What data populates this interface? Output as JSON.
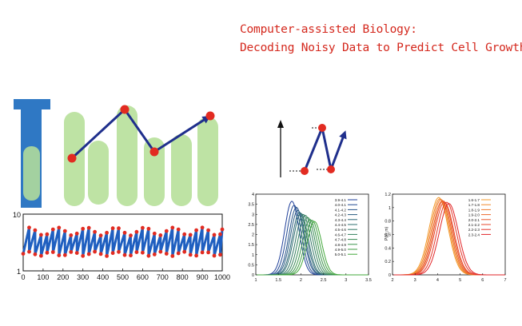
{
  "title": {
    "line1": "Computer-assisted Biology:",
    "line2": "Decoding Noisy Data to Predict Cell Growth"
  },
  "colors": {
    "title": "#d4271c",
    "mother_channel": "#2f78c4",
    "cells": "#b7e09a",
    "arrows": "#1f2f8c",
    "points": "#e22b21",
    "trace": "#1f5fc0",
    "green_series": "#43a83b",
    "blue_series": "#1f3f9a",
    "orange_series": "#f39b2e",
    "red_series": "#e2262a"
  },
  "chart_data": [
    {
      "type": "line",
      "name": "time-trace",
      "xlim": [
        0,
        1000
      ],
      "ylim": [
        1,
        10
      ],
      "yscale": "log",
      "xticks": [
        "0",
        "100",
        "200",
        "300",
        "400",
        "500",
        "600",
        "700",
        "800",
        "900",
        "1000"
      ],
      "yticks": [
        "1",
        "10"
      ],
      "period": 30,
      "low": 2.0,
      "high": 5.0
    },
    {
      "type": "line",
      "name": "distributions-left",
      "xlim": [
        1,
        3.5
      ],
      "ylim": [
        0,
        4
      ],
      "xticks": [
        "1",
        "1.5",
        "2",
        "2.5",
        "3",
        "3.5"
      ],
      "yticks": [
        "0",
        "0.5",
        "1",
        "1.5",
        "2",
        "2.5",
        "3",
        "3.5",
        "4"
      ],
      "series": [
        {
          "name": "3.9-4.1",
          "center": 1.8,
          "height": 3.65
        },
        {
          "name": "4.0-4.1",
          "center": 1.85,
          "height": 3.45
        },
        {
          "name": "4.1-4.2",
          "center": 1.9,
          "height": 3.35
        },
        {
          "name": "4.2-4.3",
          "center": 1.93,
          "height": 3.2
        },
        {
          "name": "4.3-4.4",
          "center": 1.97,
          "height": 3.1
        },
        {
          "name": "4.4-4.5",
          "center": 2.0,
          "height": 3.05
        },
        {
          "name": "4.5-4.6",
          "center": 2.05,
          "height": 3.0
        },
        {
          "name": "4.6-4.7",
          "center": 2.1,
          "height": 2.95
        },
        {
          "name": "4.7-4.8",
          "center": 2.15,
          "height": 2.85
        },
        {
          "name": "4.8-4.9",
          "center": 2.2,
          "height": 2.75
        },
        {
          "name": "4.9-5.0",
          "center": 2.25,
          "height": 2.7
        },
        {
          "name": "5.0-5.1",
          "center": 2.3,
          "height": 2.65
        }
      ]
    },
    {
      "type": "line",
      "name": "distributions-right",
      "xlim": [
        2,
        7
      ],
      "ylim": [
        0,
        1.2
      ],
      "ylabel": "P(l/l_m)",
      "xticks": [
        "2",
        "3",
        "4",
        "5",
        "6",
        "7"
      ],
      "yticks": [
        "0",
        "0.2",
        "0.4",
        "0.6",
        "0.8",
        "1",
        "1.2"
      ],
      "series": [
        {
          "name": "1.6-1.7",
          "center": 4.05,
          "height": 1.15
        },
        {
          "name": "1.7-1.8",
          "center": 4.1,
          "height": 1.13
        },
        {
          "name": "1.8-1.9",
          "center": 4.15,
          "height": 1.12
        },
        {
          "name": "1.9-2.0",
          "center": 4.2,
          "height": 1.1
        },
        {
          "name": "2.0-2.1",
          "center": 4.25,
          "height": 1.1
        },
        {
          "name": "2.1-2.2",
          "center": 4.3,
          "height": 1.08
        },
        {
          "name": "2.2-2.3",
          "center": 4.4,
          "height": 1.08
        },
        {
          "name": "2.3-2.4",
          "center": 4.5,
          "height": 1.06
        }
      ]
    }
  ]
}
